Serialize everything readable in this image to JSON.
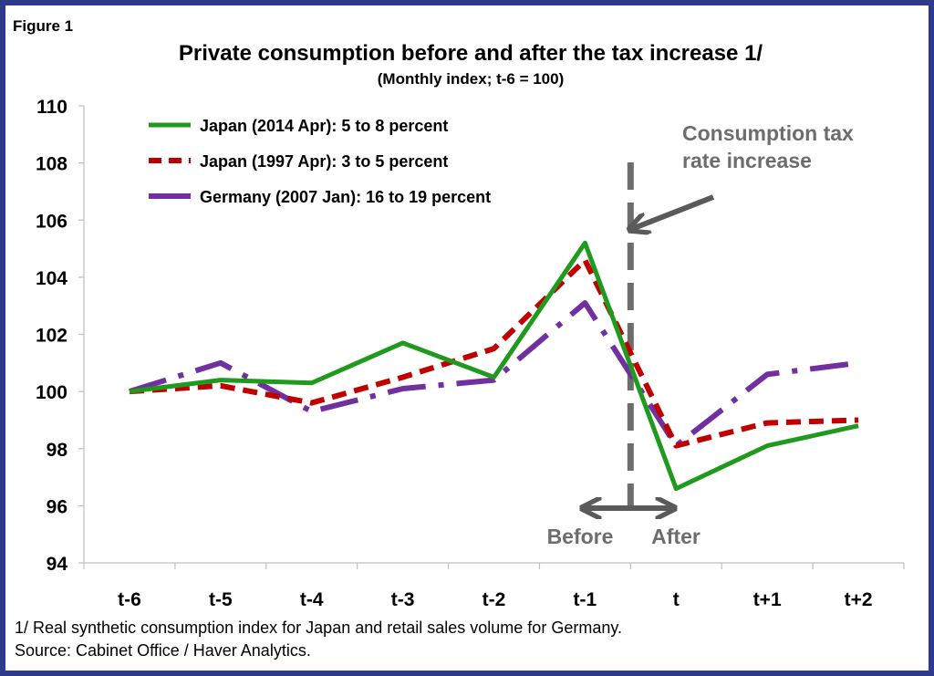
{
  "figure_label": "Figure 1",
  "chart_data": {
    "type": "line",
    "title": "Private consumption before and after the tax increase 1/",
    "subtitle": "(Monthly index; t-6 = 100)",
    "categories": [
      "t-6",
      "t-5",
      "t-4",
      "t-3",
      "t-2",
      "t-1",
      "t",
      "t+1",
      "t+2"
    ],
    "ylim": [
      94,
      110
    ],
    "yticks": [
      94,
      96,
      98,
      100,
      102,
      104,
      106,
      108,
      110
    ],
    "grid": false,
    "legend_position": "top-left",
    "series": [
      {
        "name": "Japan (2014 Apr): 5 to 8 percent",
        "values": [
          100.0,
          100.4,
          100.3,
          101.7,
          100.5,
          105.2,
          96.6,
          98.1,
          98.8
        ],
        "color": "#1f9a1f",
        "style": "solid"
      },
      {
        "name": "Japan (1997 Apr): 3 to 5 percent",
        "values": [
          100.0,
          100.2,
          99.6,
          100.5,
          101.5,
          104.6,
          98.1,
          98.9,
          99.0
        ],
        "color": "#c00000",
        "style": "dashed"
      },
      {
        "name": "Germany (2007 Jan): 16 to 19 percent",
        "values": [
          100.0,
          101.0,
          99.3,
          100.1,
          100.4,
          103.1,
          98.1,
          100.6,
          101.0
        ],
        "color": "#7030a0",
        "style": "dashdot"
      }
    ],
    "annotations": {
      "tax_line_1": "Consumption tax",
      "tax_line_2": "rate increase",
      "before": "Before",
      "after": "After"
    }
  },
  "footnote": "1/ Real synthetic consumption index for Japan and retail sales volume for Germany.",
  "source": "Source: Cabinet Office / Haver Analytics."
}
